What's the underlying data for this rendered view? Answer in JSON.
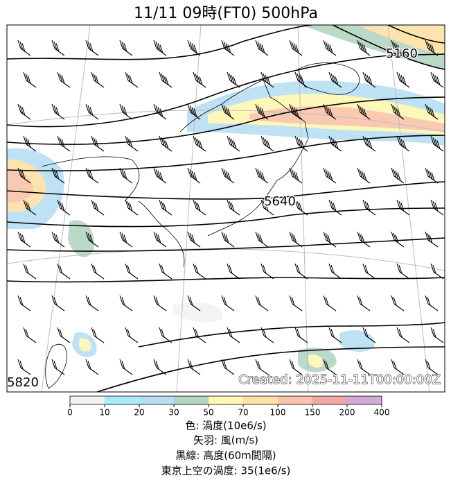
{
  "title": "11/11  09時(FT0)     500hPa",
  "map": {
    "contour_labels": [
      "5160",
      "5640",
      "5820"
    ],
    "created": "Created: 2025-11-11T00:00:00Z"
  },
  "colorbar": {
    "ticks": [
      0,
      10,
      20,
      30,
      50,
      70,
      100,
      150,
      200,
      400
    ],
    "colors": [
      "#f2f2f2",
      "#a9ecf6",
      "#b7dff3",
      "#b5d4c0",
      "#fdf8b2",
      "#fde2a6",
      "#f9c4aa",
      "#f2a7a7",
      "#d2abd6"
    ]
  },
  "legend": [
    "色: 渦度(10e6/s)",
    "矢羽: 風(m/s)",
    "黒線: 高度(60m間隔)",
    "東京上空の渦度: 35(1e6/s)"
  ]
}
